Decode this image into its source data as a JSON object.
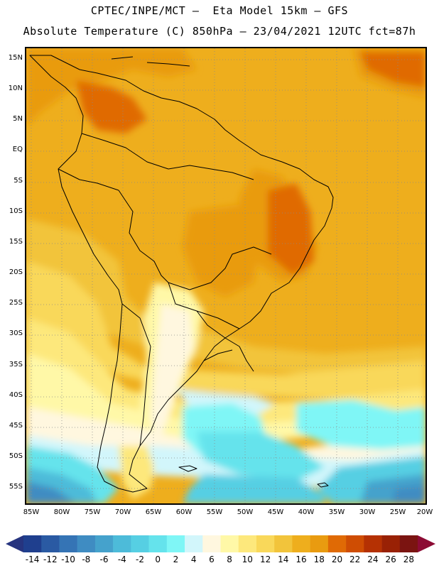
{
  "title_line1": "CPTEC/INPE/MCT –  Eta Model 15km – GFS",
  "title_line2": "Absolute Temperature (C) 850hPa – 23/04/2021 12UTC fct=87h",
  "lat_labels": [
    "15N",
    "10N",
    "5N",
    "EQ",
    "5S",
    "10S",
    "15S",
    "20S",
    "25S",
    "30S",
    "35S",
    "40S",
    "45S",
    "50S",
    "55S"
  ],
  "lon_labels": [
    "85W",
    "80W",
    "75W",
    "70W",
    "65W",
    "60W",
    "55W",
    "50W",
    "45W",
    "40W",
    "35W",
    "30W",
    "25W",
    "20W"
  ],
  "colorbar": {
    "labels": [
      "-14",
      "-12",
      "-10",
      "-8",
      "-6",
      "-4",
      "-2",
      "0",
      "2",
      "4",
      "6",
      "8",
      "10",
      "12",
      "14",
      "16",
      "18",
      "20",
      "22",
      "24",
      "26",
      "28"
    ],
    "colors": [
      "#1f3f8e",
      "#2a5aa3",
      "#3574b5",
      "#3f8cc2",
      "#45a2cc",
      "#4dbbd9",
      "#56cfe3",
      "#65e3ec",
      "#7ff6f6",
      "#d2f6fb",
      "#fff7df",
      "#fff8a7",
      "#fde87c",
      "#f9d85a",
      "#f2c43b",
      "#eeae1d",
      "#e99b10",
      "#e06a05",
      "#cf4d03",
      "#b53103",
      "#992105",
      "#7b1411"
    ],
    "under_color": "#26347f",
    "over_color": "#8c0b34"
  }
}
